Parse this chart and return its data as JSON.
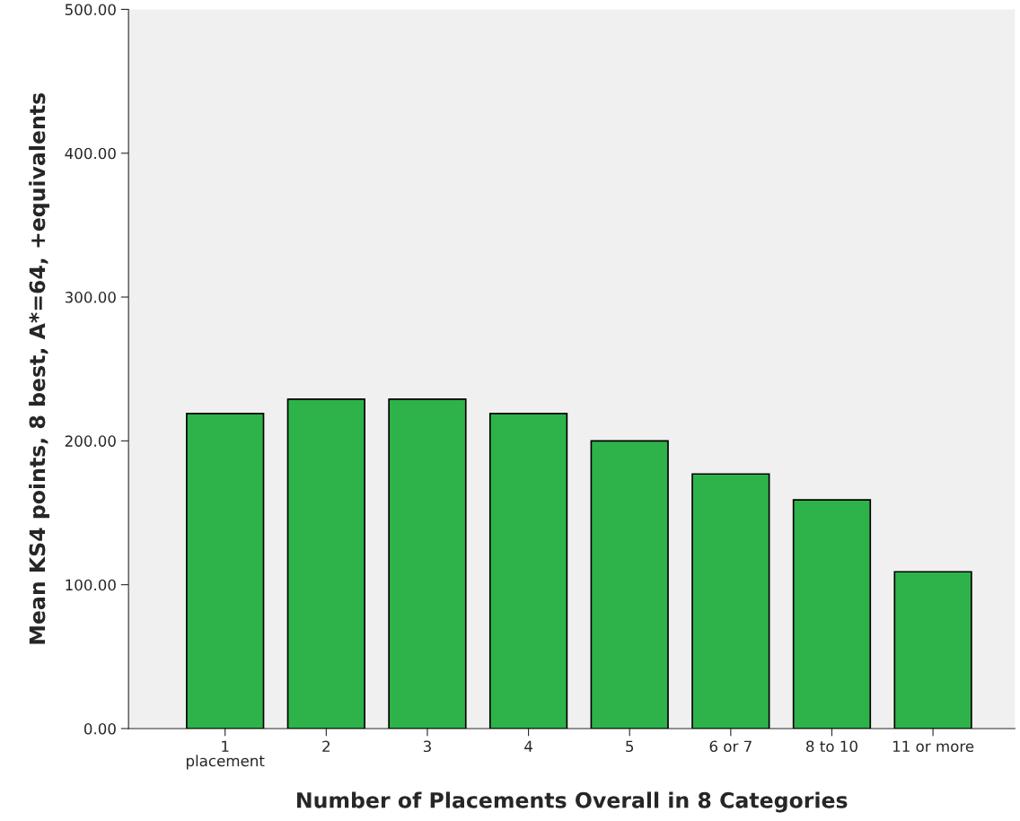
{
  "chart_data": {
    "type": "bar",
    "xlabel": "Number of Placements Overall in 8 Categories",
    "ylabel": "Mean KS4 points, 8 best, A*=64, +equivalents",
    "categories": [
      "1\nplacement",
      "2",
      "3",
      "4",
      "5",
      "6 or 7",
      "8 to 10",
      "11 or more"
    ],
    "values": [
      219,
      229,
      229,
      219,
      200,
      177,
      159,
      109
    ],
    "color": "#2db34a",
    "ylim": [
      0,
      500
    ],
    "yticks": [
      {
        "value": 0,
        "label": "0.00"
      },
      {
        "value": 100,
        "label": "100.00"
      },
      {
        "value": 200,
        "label": "200.00"
      },
      {
        "value": 300,
        "label": "300.00"
      },
      {
        "value": 400,
        "label": "400.00"
      },
      {
        "value": 500,
        "label": "500.00"
      }
    ],
    "grid": false
  }
}
